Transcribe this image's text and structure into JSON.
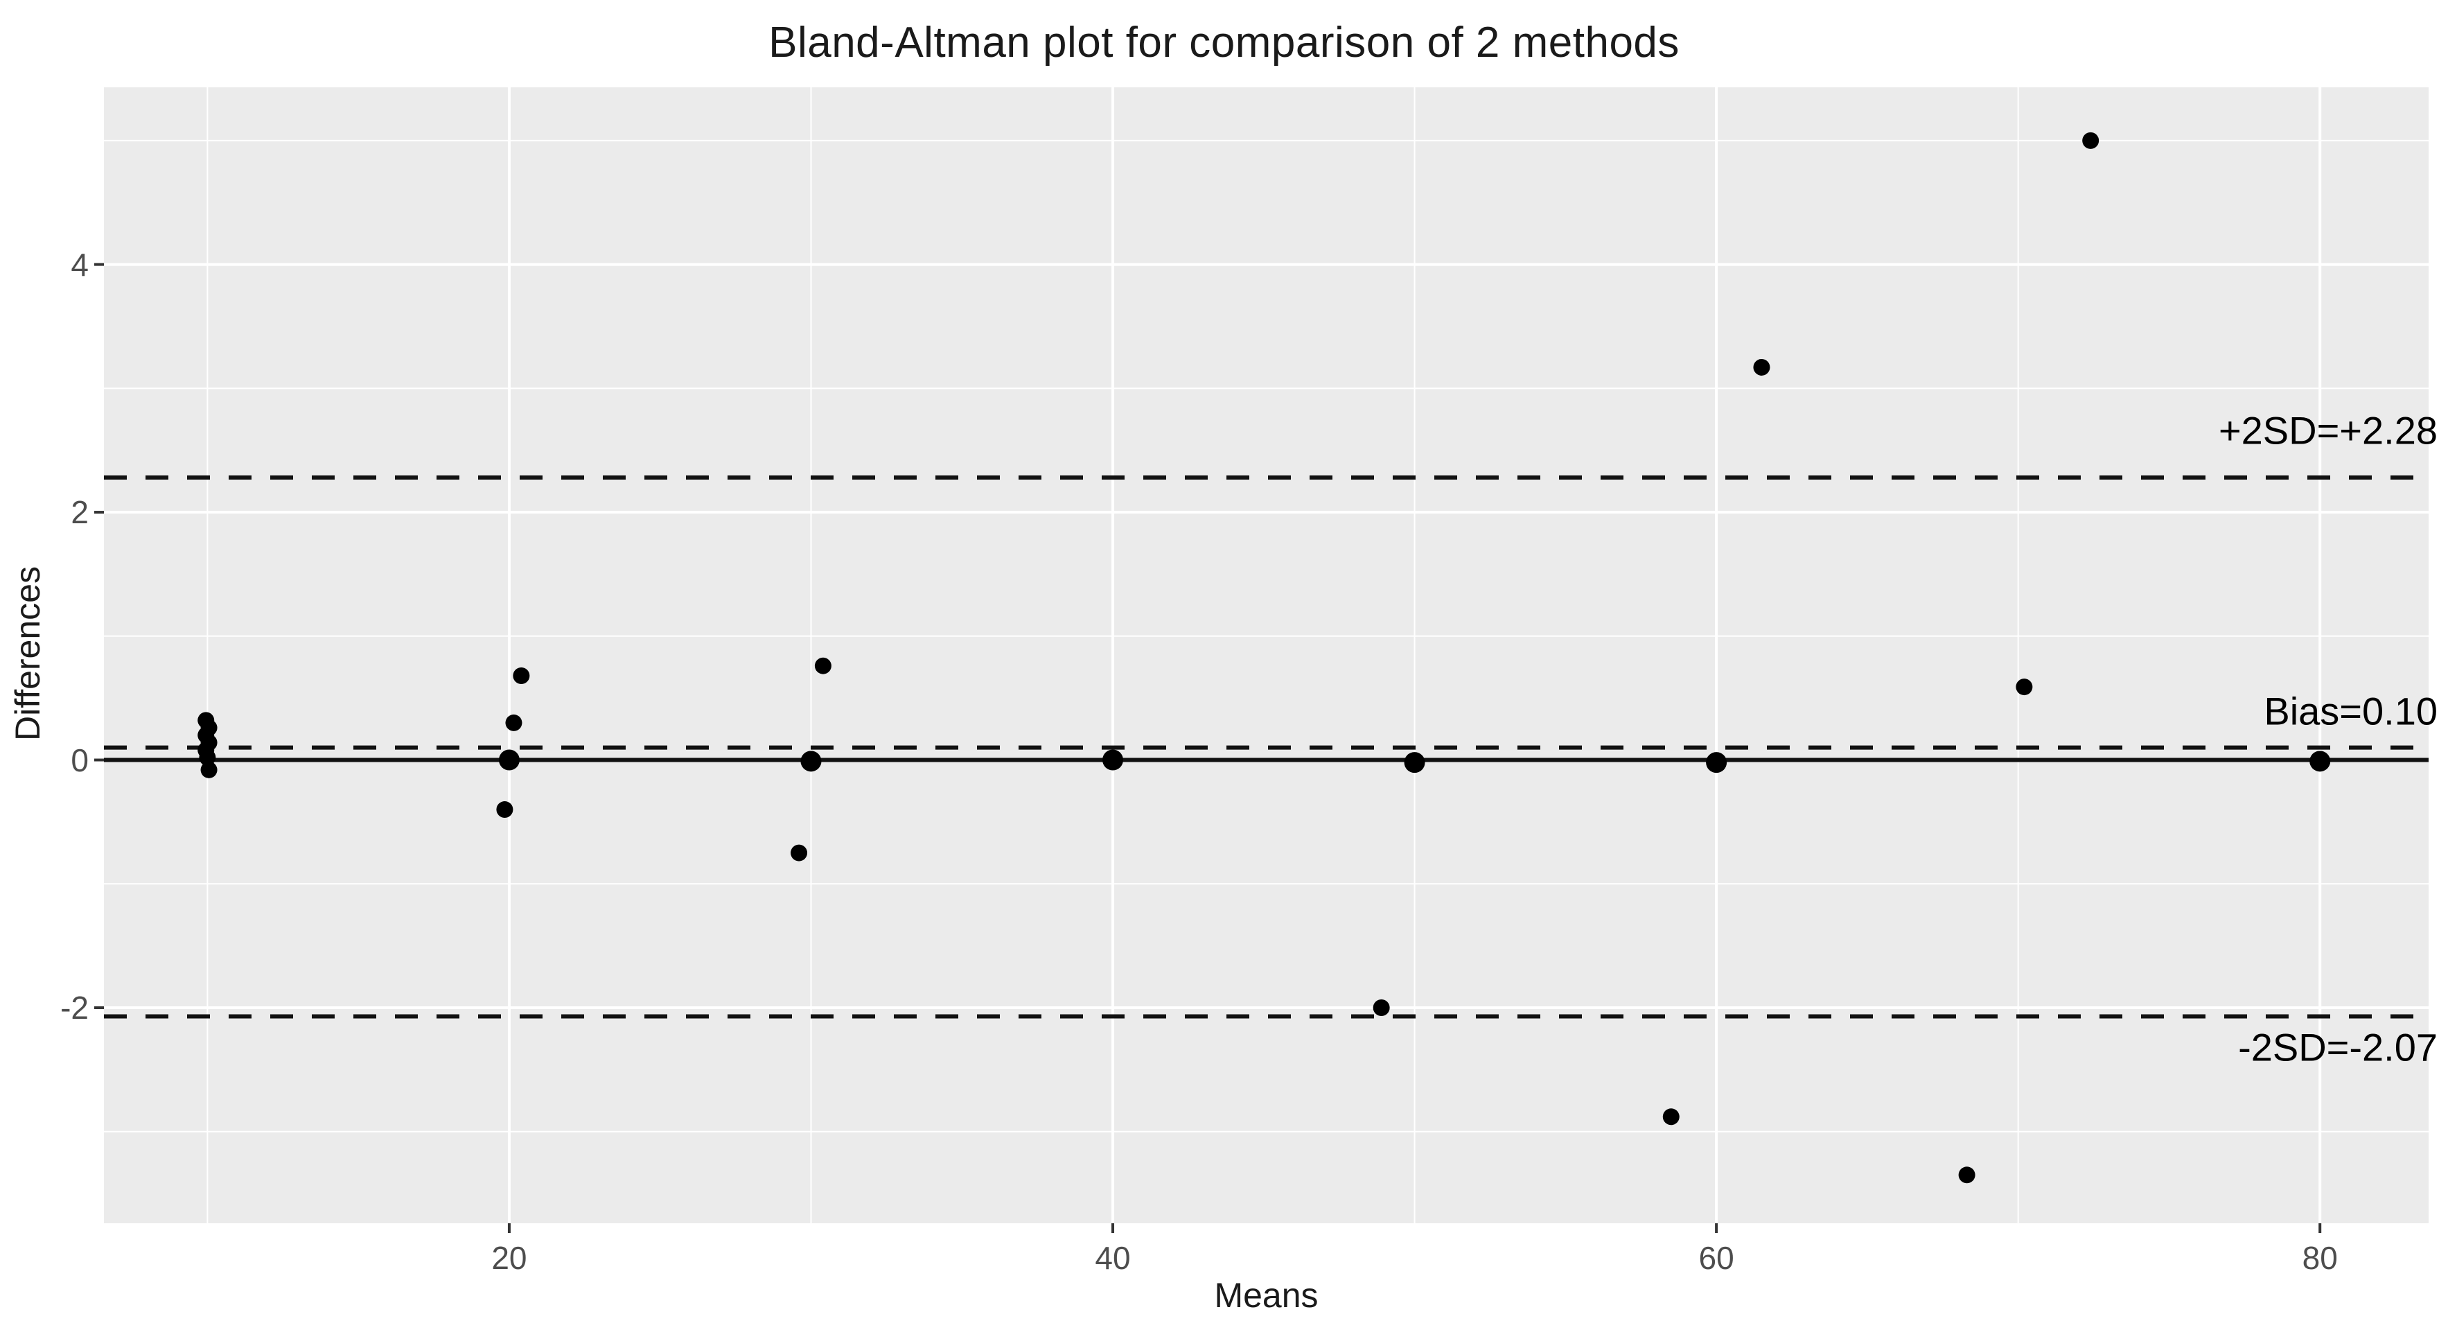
{
  "chart_data": {
    "type": "scatter",
    "title": "Bland-Altman plot for comparison of 2 methods",
    "xlabel": "Means",
    "ylabel": "Differences",
    "xlim": [
      6.57,
      83.6
    ],
    "ylim": [
      -3.74,
      5.43
    ],
    "x_major_ticks": [
      20,
      40,
      60,
      80
    ],
    "x_minor_ticks": [
      10,
      30,
      50,
      70
    ],
    "y_major_ticks": [
      -2,
      0,
      2,
      4
    ],
    "y_minor_ticks": [
      -3,
      -1,
      1,
      3,
      5
    ],
    "grid": true,
    "legend": "none",
    "bias": 0.1,
    "upper_limit_of_agreement": 2.28,
    "lower_limit_of_agreement": -2.07,
    "reference_lines": [
      {
        "label": "+2SD=+2.28",
        "value": 2.28,
        "style": "dashed",
        "label_position": "above"
      },
      {
        "label": "Bias=0.10",
        "value": 0.1,
        "style": "dashed",
        "label_position": "above"
      },
      {
        "label": "",
        "value": 0.0,
        "style": "solid",
        "label_position": "none"
      },
      {
        "label": "-2SD=-2.07",
        "value": -2.07,
        "style": "dashed",
        "label_position": "below"
      }
    ],
    "points": [
      {
        "x": 9.95,
        "y": 0.32
      },
      {
        "x": 10.05,
        "y": 0.26
      },
      {
        "x": 9.95,
        "y": 0.2
      },
      {
        "x": 10.05,
        "y": 0.14
      },
      {
        "x": 9.95,
        "y": 0.08
      },
      {
        "x": 10.0,
        "y": 0.02
      },
      {
        "x": 10.05,
        "y": -0.08
      },
      {
        "x": 20.4,
        "y": 0.68
      },
      {
        "x": 20.15,
        "y": 0.3
      },
      {
        "x": 20.0,
        "y": 0.0,
        "big": true
      },
      {
        "x": 19.85,
        "y": -0.4
      },
      {
        "x": 30.4,
        "y": 0.76
      },
      {
        "x": 30.0,
        "y": -0.01,
        "big": true
      },
      {
        "x": 29.6,
        "y": -0.75
      },
      {
        "x": 40.0,
        "y": 0.0,
        "big": true
      },
      {
        "x": 48.9,
        "y": -2.0
      },
      {
        "x": 50.0,
        "y": -0.02,
        "big": true
      },
      {
        "x": 58.5,
        "y": -2.88
      },
      {
        "x": 60.0,
        "y": -0.02,
        "big": true
      },
      {
        "x": 61.5,
        "y": 3.17
      },
      {
        "x": 68.3,
        "y": -3.35
      },
      {
        "x": 70.2,
        "y": 0.59
      },
      {
        "x": 72.4,
        "y": 5.0
      },
      {
        "x": 80.0,
        "y": -0.01,
        "big": true
      }
    ]
  },
  "colors": {
    "panel_background": "#ebebeb",
    "grid_line": "#ffffff",
    "tick_label": "#4d4d4d",
    "axis_title": "#1a1a1a",
    "annotation_text": "#000000",
    "point": "#000000",
    "reference_line": "#111111",
    "tick_mark": "#333333"
  }
}
